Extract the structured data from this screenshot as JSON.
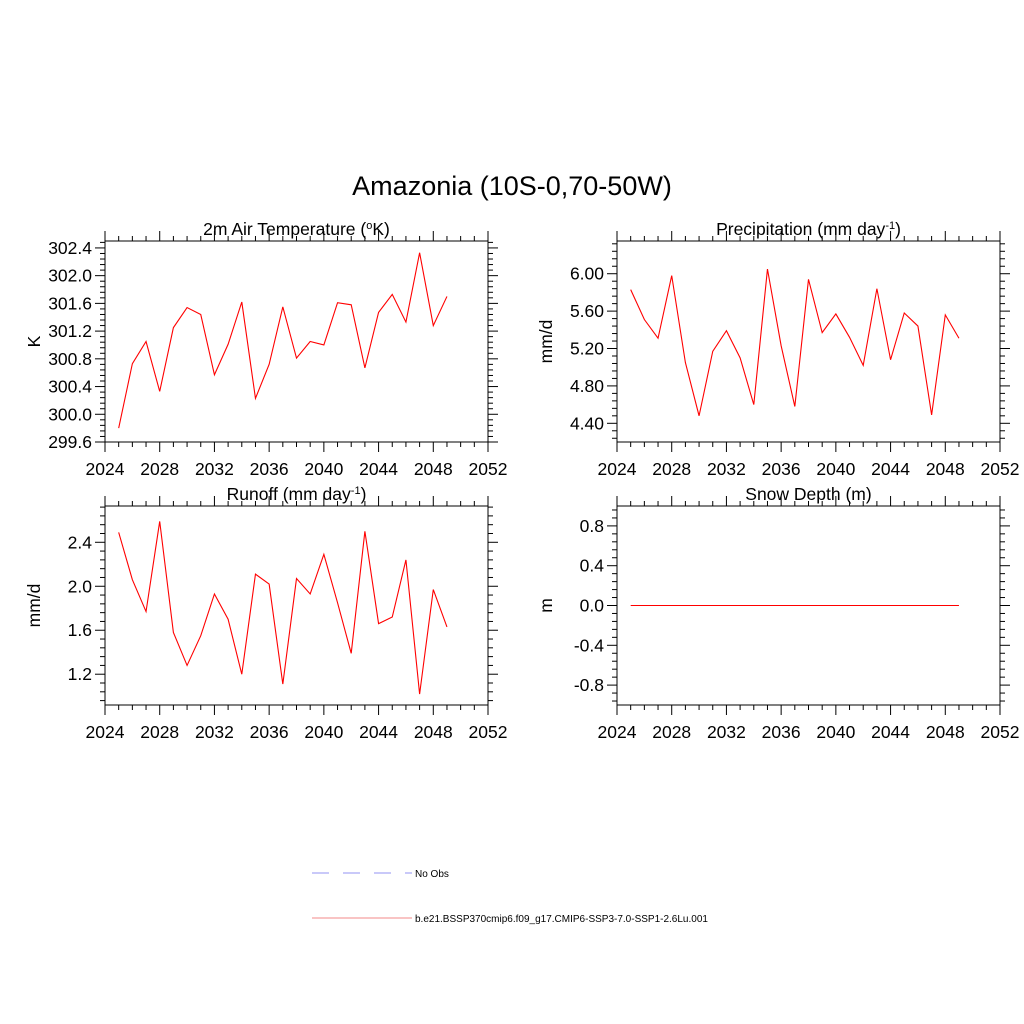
{
  "figure": {
    "title": "Amazonia (10S-0,70-50W)"
  },
  "legend": {
    "entries": [
      {
        "label": "No Obs",
        "color": "#a9a9f5",
        "style": "dashed"
      },
      {
        "label": "b.e21.BSSP370cmip6.f09_g17.CMIP6-SSP3-7.0-SSP1-2.6Lu.001",
        "color": "#f5a0a0",
        "style": "solid"
      }
    ]
  },
  "chart_data": [
    {
      "type": "line",
      "title": "2m Air Temperature (",
      "title_sup": "o",
      "title_after": "K)",
      "ylabel": "K",
      "xlim": [
        2024,
        2052
      ],
      "ylim": [
        299.6,
        302.5
      ],
      "x_ticks": [
        "2024",
        "2028",
        "2032",
        "2036",
        "2040",
        "2044",
        "2048",
        "2052"
      ],
      "y_ticks": [
        "299.6",
        "300.0",
        "300.4",
        "300.8",
        "301.2",
        "301.6",
        "302.0",
        "302.4"
      ],
      "series": [
        {
          "color": "#ff0000",
          "x": [
            2025,
            2026,
            2027,
            2028,
            2029,
            2030,
            2031,
            2032,
            2033,
            2034,
            2035,
            2036,
            2037,
            2038,
            2039,
            2040,
            2041,
            2042,
            2043,
            2044,
            2045,
            2046,
            2047,
            2048,
            2049
          ],
          "values": [
            299.8,
            300.73,
            301.05,
            300.33,
            301.25,
            301.54,
            301.44,
            300.57,
            301.01,
            301.62,
            300.23,
            300.72,
            301.55,
            300.81,
            301.05,
            301.0,
            301.61,
            301.58,
            300.67,
            301.47,
            301.73,
            301.33,
            302.33,
            301.28,
            301.7
          ]
        }
      ]
    },
    {
      "type": "line",
      "title": "Precipitation (mm day",
      "title_sup": "-1",
      "title_after": ")",
      "ylabel": "mm/d",
      "xlim": [
        2024,
        2052
      ],
      "ylim": [
        4.2,
        6.35
      ],
      "x_ticks": [
        "2024",
        "2028",
        "2032",
        "2036",
        "2040",
        "2044",
        "2048",
        "2052"
      ],
      "y_ticks": [
        "4.40",
        "4.80",
        "5.20",
        "5.60",
        "6.00"
      ],
      "series": [
        {
          "color": "#ff0000",
          "x": [
            2025,
            2026,
            2027,
            2028,
            2029,
            2030,
            2031,
            2032,
            2033,
            2034,
            2035,
            2036,
            2037,
            2038,
            2039,
            2040,
            2041,
            2042,
            2043,
            2044,
            2045,
            2046,
            2047,
            2048,
            2049
          ],
          "values": [
            5.83,
            5.51,
            5.31,
            5.98,
            5.05,
            4.48,
            5.17,
            5.39,
            5.1,
            4.6,
            6.05,
            5.23,
            4.58,
            5.94,
            5.37,
            5.57,
            5.32,
            5.02,
            5.84,
            5.08,
            5.58,
            5.44,
            4.49,
            5.56,
            5.31
          ]
        }
      ]
    },
    {
      "type": "line",
      "title": "Runoff (mm day",
      "title_sup": "-1",
      "title_after": ")",
      "ylabel": "mm/d",
      "xlim": [
        2024,
        2052
      ],
      "ylim": [
        0.92,
        2.73
      ],
      "x_ticks": [
        "2024",
        "2028",
        "2032",
        "2036",
        "2040",
        "2044",
        "2048",
        "2052"
      ],
      "y_ticks": [
        "1.2",
        "1.6",
        "2.0",
        "2.4"
      ],
      "series": [
        {
          "color": "#ff0000",
          "x": [
            2025,
            2026,
            2027,
            2028,
            2029,
            2030,
            2031,
            2032,
            2033,
            2034,
            2035,
            2036,
            2037,
            2038,
            2039,
            2040,
            2041,
            2042,
            2043,
            2044,
            2045,
            2046,
            2047,
            2048,
            2049
          ],
          "values": [
            2.49,
            2.06,
            1.77,
            2.59,
            1.58,
            1.28,
            1.55,
            1.93,
            1.7,
            1.2,
            2.11,
            2.02,
            1.11,
            2.07,
            1.93,
            2.29,
            1.85,
            1.39,
            2.5,
            1.66,
            1.72,
            2.24,
            1.02,
            1.97,
            1.63
          ]
        }
      ]
    },
    {
      "type": "line",
      "title": "Snow Depth (m)",
      "title_sup": "",
      "title_after": "",
      "ylabel": "m",
      "xlim": [
        2024,
        2052
      ],
      "ylim": [
        -1.0,
        1.0
      ],
      "x_ticks": [
        "2024",
        "2028",
        "2032",
        "2036",
        "2040",
        "2044",
        "2048",
        "2052"
      ],
      "y_ticks": [
        "-0.8",
        "-0.4",
        "0.0",
        "0.4",
        "0.8"
      ],
      "series": [
        {
          "color": "#ff0000",
          "x": [
            2025,
            2026,
            2027,
            2028,
            2029,
            2030,
            2031,
            2032,
            2033,
            2034,
            2035,
            2036,
            2037,
            2038,
            2039,
            2040,
            2041,
            2042,
            2043,
            2044,
            2045,
            2046,
            2047,
            2048,
            2049
          ],
          "values": [
            0,
            0,
            0,
            0,
            0,
            0,
            0,
            0,
            0,
            0,
            0,
            0,
            0,
            0,
            0,
            0,
            0,
            0,
            0,
            0,
            0,
            0,
            0,
            0,
            0
          ]
        }
      ]
    }
  ]
}
